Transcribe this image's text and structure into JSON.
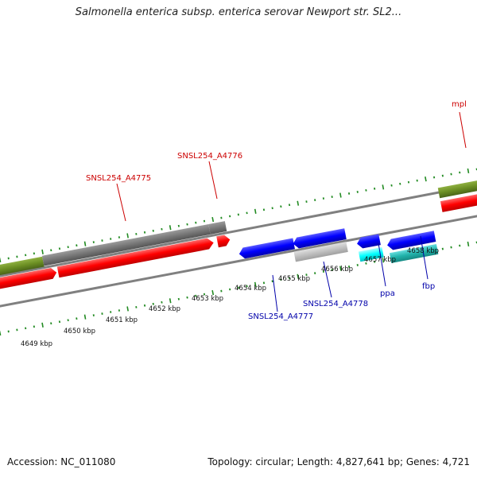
{
  "title": "Salmonella enterica subsp. enterica serovar Newport str. SL2...",
  "footer": {
    "accession": "Accession: NC_011080",
    "topology": "Topology: circular; Length: 4,827,641 bp; Genes: 4,721"
  },
  "kbp_labels": [
    "4649 kbp",
    "4650 kbp",
    "4651 kbp",
    "4652 kbp",
    "4653 kbp",
    "4654 kbp",
    "4655 kbp",
    "4656 kbp",
    "4657 kbp",
    "4658 kbp"
  ],
  "gene_labels": {
    "mpl": "mpl",
    "a4776": "SNSL254_A4776",
    "a4775": "SNSL254_A4775",
    "a4777": "SNSL254_A4777",
    "a4778": "SNSL254_A4778",
    "ppa": "ppa",
    "fbp": "fbp"
  },
  "colors": {
    "forward_cds": "#ff0000",
    "forward_gene": "#808080",
    "reverse_cds": "#0000ff",
    "reverse_gene": "#c0c0c0",
    "rrna_olive": "#6b8e23",
    "trna_cyan": "#00ffff",
    "tick_green": "#228b22",
    "backbone": "#808080",
    "forward_label": "#cc0000",
    "reverse_label": "#0000aa"
  }
}
